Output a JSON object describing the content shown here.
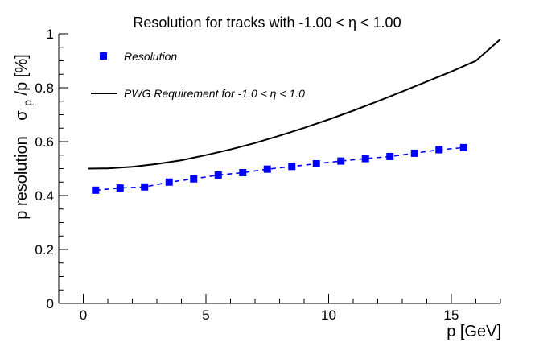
{
  "chart_data": {
    "type": "scatter",
    "title": "Resolution for tracks with -1.00 < η < 1.00",
    "xlabel": "p [GeV]",
    "ylabel_prefix": "p resolution",
    "ylabel_sigma": "σ",
    "ylabel_sub": "p",
    "ylabel_suffix": "/p  [%]",
    "xlim": [
      -1,
      17
    ],
    "ylim": [
      0,
      1
    ],
    "x_ticks": [
      0,
      5,
      10,
      15
    ],
    "x_tick_labels": [
      "0",
      "5",
      "10",
      "15"
    ],
    "y_ticks": [
      0,
      0.2,
      0.4,
      0.6,
      0.8,
      1
    ],
    "y_tick_labels": [
      "0",
      "0.2",
      "0.4",
      "0.6",
      "0.8",
      "1"
    ],
    "series": [
      {
        "name": "Resolution",
        "style": "markers-dashed",
        "color": "#0000ff",
        "x": [
          0.5,
          1.5,
          2.5,
          3.5,
          4.5,
          5.5,
          6.5,
          7.5,
          8.5,
          9.5,
          10.5,
          11.5,
          12.5,
          13.5,
          14.5,
          15.5
        ],
        "y": [
          0.42,
          0.428,
          0.432,
          0.45,
          0.462,
          0.476,
          0.485,
          0.498,
          0.508,
          0.518,
          0.528,
          0.537,
          0.545,
          0.557,
          0.57,
          0.578
        ]
      },
      {
        "name": "PWG Requirement for -1.0 < η < 1.0",
        "style": "line",
        "color": "#000000",
        "x": [
          0.2,
          1,
          2,
          3,
          4,
          5,
          6,
          7,
          8,
          9,
          10,
          11,
          12,
          13,
          14,
          15,
          16,
          17
        ],
        "y": [
          0.5,
          0.501,
          0.507,
          0.517,
          0.531,
          0.55,
          0.571,
          0.595,
          0.622,
          0.651,
          0.682,
          0.715,
          0.75,
          0.786,
          0.823,
          0.86,
          0.9,
          0.98
        ]
      }
    ],
    "legend_position": "top-left"
  }
}
